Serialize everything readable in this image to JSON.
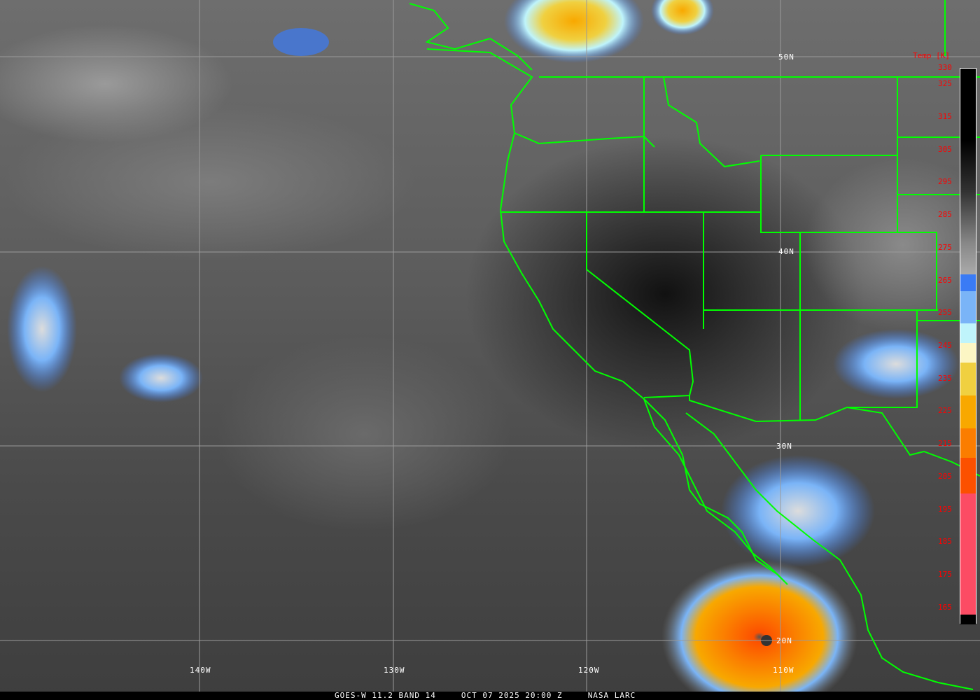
{
  "caption": {
    "satellite": "GOES-W 11.2 BAND 14",
    "datetime": "OCT 07 2025 20:00 Z",
    "source": "NASA LARC"
  },
  "grid": {
    "latitudes": [
      "50N",
      "40N",
      "30N",
      "20N"
    ],
    "longitudes": [
      "140W",
      "130W",
      "120W",
      "110W"
    ]
  },
  "colorbar": {
    "title": "Temp [K]",
    "range": [
      160,
      330
    ],
    "ticks": [
      "330",
      "325",
      "315",
      "305",
      "295",
      "285",
      "275",
      "265",
      "255",
      "245",
      "235",
      "225",
      "215",
      "205",
      "195",
      "185",
      "175",
      "165"
    ],
    "bands": [
      {
        "from": 330,
        "to": 267,
        "color": "gray-ramp"
      },
      {
        "from": 267,
        "to": 262,
        "color": "#3a7bf5"
      },
      {
        "from": 262,
        "to": 252,
        "color": "#7ab4f7"
      },
      {
        "from": 252,
        "to": 246,
        "color": "#bff4fb"
      },
      {
        "from": 246,
        "to": 240,
        "color": "#fcf6c4"
      },
      {
        "from": 240,
        "to": 230,
        "color": "#f0d040"
      },
      {
        "from": 230,
        "to": 220,
        "color": "#f8a800"
      },
      {
        "from": 220,
        "to": 211,
        "color": "#fb7d00"
      },
      {
        "from": 211,
        "to": 200,
        "color": "#fc5000"
      },
      {
        "from": 200,
        "to": 163,
        "color": "#fc4c64"
      },
      {
        "from": 163,
        "to": 160,
        "color": "#000000"
      }
    ],
    "label_color": "#ff0000"
  },
  "border_color": "#00ff00"
}
